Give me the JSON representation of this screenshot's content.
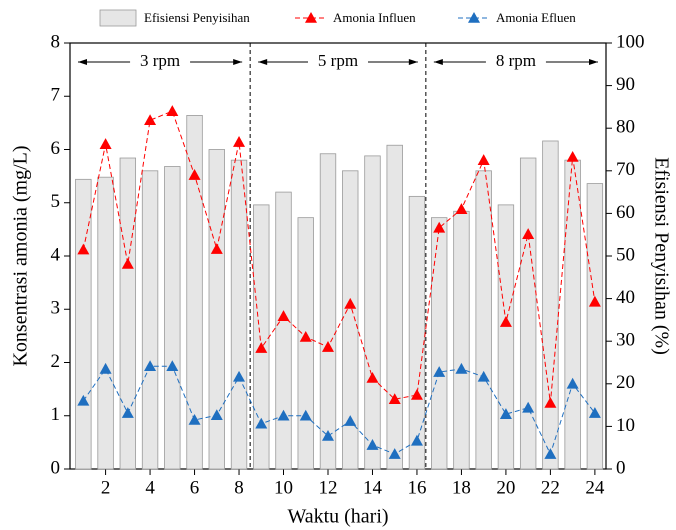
{
  "chart_data": {
    "type": "bar-line",
    "x": [
      1,
      2,
      3,
      4,
      5,
      6,
      7,
      8,
      9,
      10,
      11,
      12,
      13,
      14,
      15,
      16,
      17,
      18,
      19,
      20,
      21,
      22,
      23,
      24
    ],
    "xlim": [
      0.4,
      24.5
    ],
    "xticks": [
      2,
      4,
      6,
      8,
      10,
      12,
      14,
      16,
      18,
      20,
      22,
      24
    ],
    "ylim": [
      0,
      8
    ],
    "yticks": [
      0,
      1,
      2,
      3,
      4,
      5,
      6,
      7,
      8
    ],
    "y2lim": [
      0,
      100
    ],
    "y2ticks": [
      0,
      10,
      20,
      30,
      40,
      50,
      60,
      70,
      80,
      90,
      100
    ],
    "xlabel": "Waktu (hari)",
    "ylabel": "Konsentrasi amonia (mg/L)",
    "y2label": "Efisiensi Penyisihan (%)",
    "series": [
      {
        "name": "Efisiensi Penyisihan",
        "type": "bar",
        "axis": "y2",
        "color": "#e6e6e6",
        "values": [
          68,
          68.5,
          73,
          70,
          71,
          83,
          75,
          72.5,
          62,
          65,
          59,
          74,
          70,
          73.5,
          76,
          64,
          59,
          60.5,
          70,
          62,
          73,
          77,
          72.5,
          67
        ]
      },
      {
        "name": "Amonia Influen",
        "type": "line",
        "color": "#ff0000",
        "values": [
          4.12,
          6.1,
          3.85,
          6.55,
          6.72,
          5.52,
          4.13,
          6.14,
          2.27,
          2.87,
          2.48,
          2.29,
          3.1,
          1.71,
          1.31,
          1.39,
          4.53,
          4.88,
          5.8,
          2.76,
          4.41,
          1.24,
          5.86,
          3.14
        ]
      },
      {
        "name": "Amonia Efluen",
        "type": "line",
        "color": "#1f6fc0",
        "values": [
          1.28,
          1.88,
          1.05,
          1.93,
          1.93,
          0.92,
          1.01,
          1.73,
          0.85,
          1.0,
          1.0,
          0.62,
          0.9,
          0.45,
          0.28,
          0.53,
          1.82,
          1.88,
          1.73,
          1.03,
          1.15,
          0.28,
          1.6,
          1.05
        ]
      }
    ],
    "dividers": [
      8.5,
      16.4
    ],
    "annotations": [
      "3 rpm",
      "5 rpm",
      "8 rpm"
    ]
  }
}
